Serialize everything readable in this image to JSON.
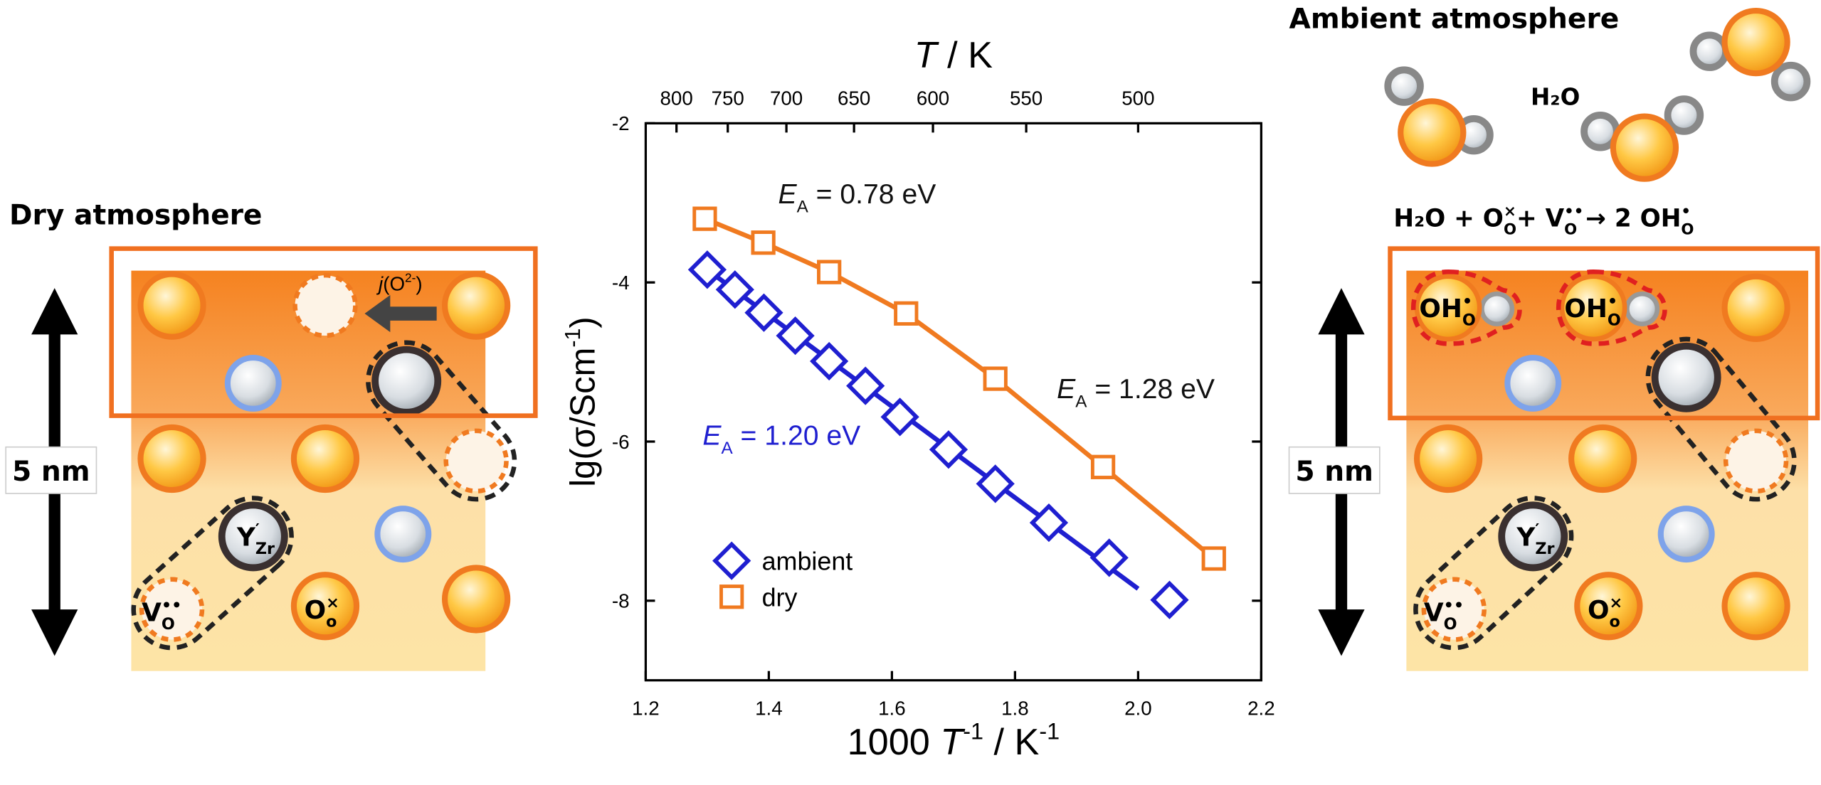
{
  "chart_data": {
    "type": "scatter",
    "x2label": [
      {
        "text": "T",
        "style": "it"
      },
      {
        "text": " / K"
      }
    ],
    "xlabel": [
      {
        "text": "1000 "
      },
      {
        "text": "T",
        "style": "it"
      },
      {
        "text": "-1",
        "style": "sup"
      },
      {
        "text": " / K"
      },
      {
        "text": "-1",
        "style": "sup"
      }
    ],
    "ylabel": [
      {
        "text": "lg(σ/Scm"
      },
      {
        "text": "-1",
        "style": "sup"
      },
      {
        "text": ")"
      }
    ],
    "xlim": [
      1.2,
      2.2
    ],
    "xticks": [
      1.2,
      1.4,
      1.6,
      1.8,
      {
        "value": 2,
        "label": "2.0"
      },
      2.2
    ],
    "x2ticks": [
      800,
      750,
      700,
      650,
      600,
      550,
      500
    ],
    "x2_scale": "reciprocal",
    "ylim": [
      -9,
      -2
    ],
    "yticks": [
      -2,
      -4,
      -6,
      -8
    ],
    "legend": "lower left",
    "series": [
      {
        "name": "ambient",
        "color": "#1f1fd0",
        "marker": "diamond",
        "x": [
          1.3,
          1.345,
          1.392,
          1.443,
          1.498,
          1.557,
          1.613,
          1.692,
          1.768,
          1.855,
          1.953,
          2.051
        ],
        "values": [
          -3.84,
          -4.09,
          -4.38,
          -4.67,
          -4.99,
          -5.3,
          -5.69,
          -6.1,
          -6.53,
          -7.02,
          -7.46,
          -7.99
        ],
        "fit": {
          "x": [
            1.3,
            2.0
          ],
          "values": [
            -3.84,
            -7.85
          ]
        }
      },
      {
        "name": "dry",
        "color": "#f07a20",
        "marker": "square",
        "connect": true,
        "x": [
          1.296,
          1.391,
          1.498,
          1.623,
          1.768,
          1.943,
          2.123
        ],
        "values": [
          -3.2,
          -3.5,
          -3.87,
          -4.39,
          -5.21,
          -6.32,
          -7.47
        ]
      }
    ],
    "annotations": [
      {
        "symbol": "E",
        "sub": "A",
        "text": " = 0.78 eV",
        "color": "#111111"
      },
      {
        "symbol": "E",
        "sub": "A",
        "text": " = 1.28 eV",
        "color": "#111111"
      },
      {
        "symbol": "E",
        "sub": "A",
        "text": " = 1.20 eV",
        "color": "#1f1fd0"
      }
    ]
  },
  "left_panel": {
    "title": "Dry atmosphere",
    "scale_bar": "5 nm",
    "flux": [
      {
        "text": "j",
        "style": "it"
      },
      {
        "text": "(O"
      },
      {
        "text": "2-",
        "style": "sup"
      },
      {
        "text": ")"
      }
    ],
    "defects": {
      "yzr": {
        "main": "Y",
        "sup": "′",
        "sub": "Zr"
      },
      "vo": {
        "main": "V",
        "sup": "••",
        "sub": "O"
      },
      "oo": {
        "main": "O",
        "sup": "×",
        "sub": "o"
      }
    }
  },
  "right_panel": {
    "title": "Ambient atmosphere",
    "molecule": "H₂O",
    "scale_bar": "5 nm",
    "equation": {
      "lhs": "H₂O + ",
      "t1": {
        "main": "O",
        "sup": "×",
        "sub": "O"
      },
      "plus": "+ ",
      "t2": {
        "main": "V",
        "sup": "••",
        "sub": "O"
      },
      "arrow": " →   ",
      "rhs": "2 ",
      "t3": {
        "main": "OH",
        "sup": "•",
        "sub": "O"
      }
    },
    "defects": {
      "oh1": {
        "main": "OH",
        "sup": "•",
        "sub": "O"
      },
      "oh2": {
        "main": "OH",
        "sup": "•",
        "sub": "O"
      },
      "yzr": {
        "main": "Y",
        "sup": "′",
        "sub": "Zr"
      },
      "vo": {
        "main": "V",
        "sup": "••",
        "sub": "O"
      },
      "oo": {
        "main": "O",
        "sup": "×",
        "sub": "o"
      }
    }
  }
}
